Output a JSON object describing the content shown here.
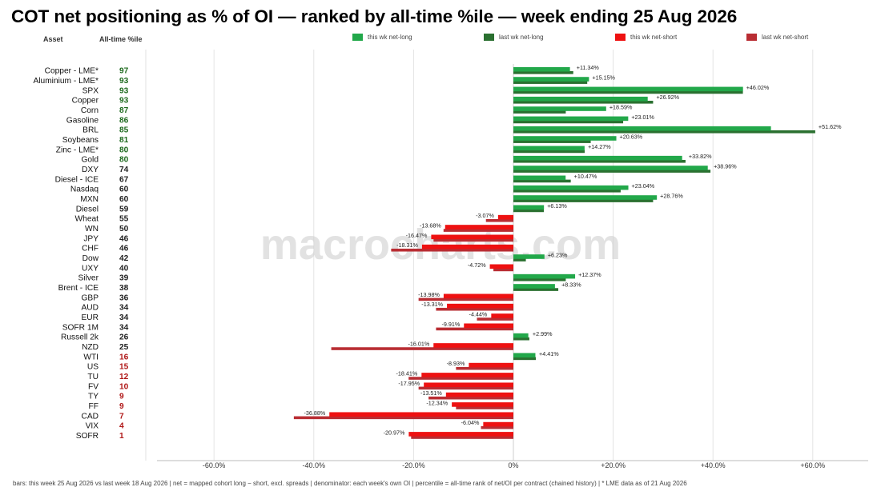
{
  "title": "COT net positioning as % of OI — ranked by all-time %ile — week ending 25 Aug 2026",
  "col_asset": "Asset",
  "col_pct": "All-time %ile",
  "watermark": "macrocharts.com",
  "footer": "bars: this week 25 Aug 2026 vs last week 18 Aug 2026    |    net = mapped cohort long − short, excl. spreads    |    denominator: each week's own OI    |    percentile = all-time rank of net/OI per contract (chained history)    |    * LME data as of 21 Aug 2026",
  "legend": [
    {
      "label": "this wk net-long",
      "color": "#22a84a"
    },
    {
      "label": "last wk net-long",
      "color": "#2a7030"
    },
    {
      "label": "this wk net-short",
      "color": "#ee1111"
    },
    {
      "label": "last wk net-short",
      "color": "#b92d33"
    }
  ],
  "colors": {
    "this_long": "#22a84a",
    "last_long": "#2a7030",
    "this_short": "#ee1111",
    "last_short": "#b92d33",
    "pct_high": "#1e6a1e",
    "pct_mid": "#222222",
    "pct_low": "#b01818"
  },
  "chart_data": {
    "type": "bar",
    "orientation": "horizontal",
    "x_unit": "% of OI",
    "xlim": [
      -70,
      70
    ],
    "x_ticks": [
      -60,
      -40,
      -20,
      0,
      20,
      40,
      60
    ],
    "x_tick_labels": [
      "-60.0%",
      "-40.0%",
      "-20.0%",
      "0%",
      "+20.0%",
      "+40.0%",
      "+60.0%"
    ],
    "grid": "vertical",
    "legend_position": "top",
    "series": [
      {
        "name": "this wk",
        "values": [
          11.34,
          15.15,
          46.02,
          26.92,
          18.59,
          23.01,
          51.62,
          20.63,
          14.27,
          33.82,
          38.96,
          10.47,
          23.04,
          28.76,
          6.13,
          -3.07,
          -13.68,
          -16.47,
          -18.31,
          6.23,
          -4.72,
          12.37,
          8.33,
          -13.98,
          -13.31,
          -4.44,
          -9.91,
          2.99,
          -16.01,
          4.41,
          -8.93,
          -18.41,
          -17.95,
          -13.51,
          -12.34,
          -36.88,
          -6.04,
          -20.97
        ]
      },
      {
        "name": "last wk",
        "values": [
          12,
          14.8,
          46,
          28,
          10.5,
          22,
          60.5,
          15.5,
          14.3,
          34.5,
          39.5,
          11.5,
          21.5,
          28,
          6.1,
          -5.5,
          -14,
          -16,
          -24.5,
          2.5,
          -4,
          10.5,
          9,
          -19,
          -15.5,
          -7.3,
          -15.5,
          3.2,
          -36.5,
          4.5,
          -11.5,
          -21,
          -19,
          -17,
          -11.5,
          -44,
          -6.5,
          -20.5
        ]
      }
    ],
    "assets": [
      "Copper - LME*",
      "Aluminium - LME*",
      "SPX",
      "Copper",
      "Corn",
      "Gasoline",
      "BRL",
      "Soybeans",
      "Zinc - LME*",
      "Gold",
      "DXY",
      "Diesel - ICE",
      "Nasdaq",
      "MXN",
      "Diesel",
      "Wheat",
      "WN",
      "JPY",
      "CHF",
      "Dow",
      "UXY",
      "Silver",
      "Brent - ICE",
      "GBP",
      "AUD",
      "EUR",
      "SOFR 1M",
      "Russell 2k",
      "NZD",
      "WTI",
      "US",
      "TU",
      "FV",
      "TY",
      "FF",
      "CAD",
      "VIX",
      "SOFR"
    ],
    "percentiles": [
      97,
      93,
      93,
      93,
      87,
      86,
      85,
      81,
      80,
      80,
      74,
      67,
      60,
      60,
      59,
      55,
      50,
      46,
      46,
      42,
      40,
      39,
      38,
      36,
      34,
      34,
      34,
      26,
      25,
      16,
      15,
      12,
      10,
      9,
      9,
      7,
      4,
      1
    ],
    "data_label_format": "signed percent of this week's value"
  }
}
